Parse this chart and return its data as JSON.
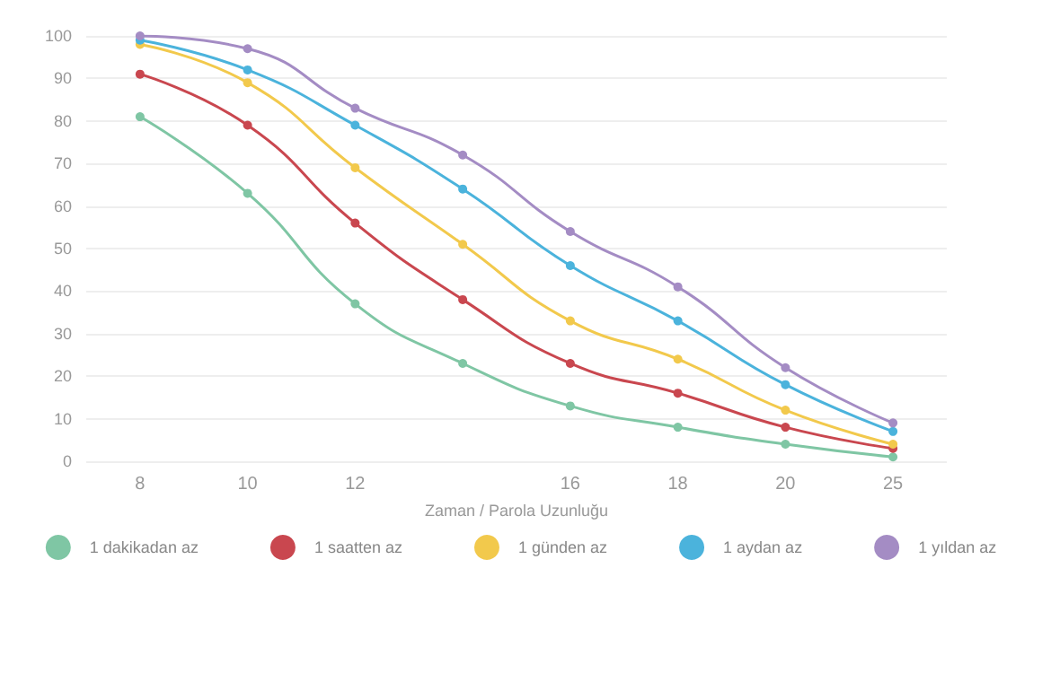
{
  "chart_data": {
    "type": "line",
    "xlabel": "Zaman / Parola Uzunluğu",
    "categories": [
      "8",
      "10",
      "12",
      null,
      "16",
      "18",
      "20",
      "25"
    ],
    "ylim": [
      0,
      100
    ],
    "yticks": [
      0,
      10,
      20,
      30,
      40,
      50,
      60,
      70,
      80,
      90,
      100
    ],
    "grid": "y",
    "legend": "bottom",
    "marker": "circle",
    "line_style": "solid",
    "series": [
      {
        "name": "1 dakikadan az",
        "color": "#7fc6a4",
        "values": [
          81,
          63,
          37,
          23,
          13,
          8,
          4,
          1
        ]
      },
      {
        "name": "1 saatten az",
        "color": "#c9474f",
        "values": [
          91,
          79,
          56,
          38,
          23,
          16,
          8,
          3
        ]
      },
      {
        "name": "1 günden az",
        "color": "#f2c94c",
        "values": [
          98,
          89,
          69,
          51,
          33,
          24,
          12,
          4
        ]
      },
      {
        "name": "1 aydan az",
        "color": "#4bb3dc",
        "values": [
          99,
          92,
          79,
          64,
          46,
          33,
          18,
          7
        ]
      },
      {
        "name": "1 yıldan az",
        "color": "#a48cc4",
        "values": [
          100,
          97,
          83,
          72,
          54,
          41,
          22,
          9
        ]
      }
    ]
  }
}
